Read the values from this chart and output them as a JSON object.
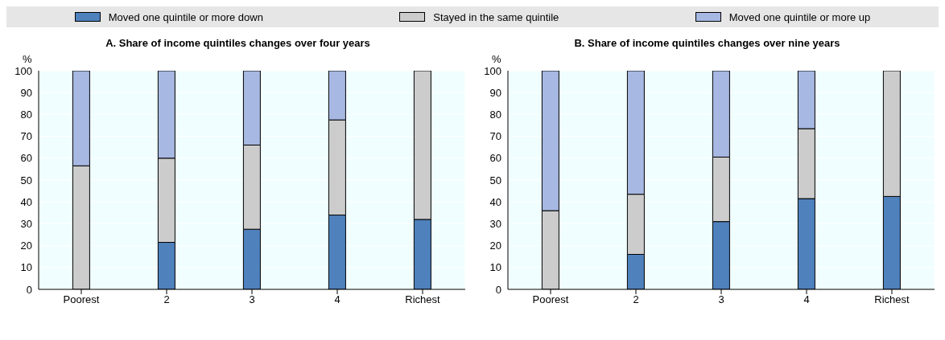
{
  "chart_data": [
    {
      "type": "bar",
      "title": "A. Share of income quintiles changes over four years",
      "ylabel": "%",
      "categories": [
        "Poorest",
        "2",
        "3",
        "4",
        "Richest"
      ],
      "stacked": true,
      "legend": "top",
      "grid": true,
      "ylim": [
        0,
        100
      ],
      "yticks": [
        0,
        10,
        20,
        30,
        40,
        50,
        60,
        70,
        80,
        90,
        100
      ],
      "series": [
        {
          "name": "Moved one quintile or more down",
          "color": "#4f81bd",
          "values": [
            0,
            21.5,
            27.5,
            34,
            32
          ]
        },
        {
          "name": "Stayed in the same quintile",
          "color": "#cccccc",
          "values": [
            56.5,
            38.5,
            38.5,
            43.5,
            68
          ]
        },
        {
          "name": "Moved one quintile or more up",
          "color": "#a7b8e2",
          "values": [
            43.5,
            40,
            34,
            22.5,
            0
          ]
        }
      ]
    },
    {
      "type": "bar",
      "title": "B. Share of income quintiles changes over  nine years",
      "ylabel": "%",
      "categories": [
        "Poorest",
        "2",
        "3",
        "4",
        "Richest"
      ],
      "stacked": true,
      "grid": true,
      "ylim": [
        0,
        100
      ],
      "yticks": [
        0,
        10,
        20,
        30,
        40,
        50,
        60,
        70,
        80,
        90,
        100
      ],
      "series": [
        {
          "color": "#4f81bd",
          "values": [
            0,
            16,
            31,
            41.5,
            42.5
          ]
        },
        {
          "color": "#cccccc",
          "values": [
            36,
            27.5,
            29.5,
            32,
            57.5
          ]
        },
        {
          "color": "#a7b8e2",
          "values": [
            64,
            56.5,
            39.5,
            26.5,
            0
          ]
        }
      ]
    }
  ]
}
